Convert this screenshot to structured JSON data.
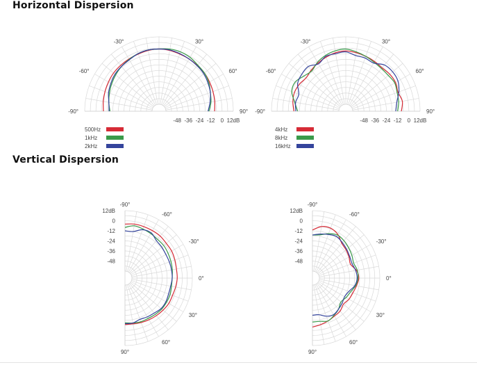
{
  "headings": {
    "horizontal": "Horizontal Dispersion",
    "vertical": "Vertical Dispersion"
  },
  "chart_data": [
    {
      "type": "polar",
      "section": "Horizontal Dispersion",
      "layout": "half-up",
      "angle_labels": [
        "-90°",
        "-60°",
        "-30°",
        "30°",
        "60°",
        "90°"
      ],
      "angle_ticks": [
        -90,
        -60,
        -30,
        30,
        60,
        90
      ],
      "radial_labels": [
        "-48",
        "-36",
        "-24",
        "-12",
        "0",
        "12dB"
      ],
      "radial_ticks": [
        -48,
        -36,
        -24,
        -12,
        0,
        12
      ],
      "r_range": [
        -60,
        12
      ],
      "grid": true,
      "legend": "bottom-left",
      "angles": [
        -90,
        -80,
        -70,
        -60,
        -50,
        -40,
        -30,
        -20,
        -10,
        0,
        10,
        20,
        30,
        40,
        50,
        60,
        70,
        80,
        90
      ],
      "series": [
        {
          "name": "500Hz",
          "color": "#d62b36",
          "values": [
            -8,
            -7,
            -6,
            -5,
            -4,
            -3.5,
            -3,
            -2.5,
            -1.5,
            -1,
            -1.5,
            -2.5,
            -3,
            -3.5,
            -4,
            -5,
            -6,
            -7,
            -8
          ]
        },
        {
          "name": "1kHz",
          "color": "#3a9a4a",
          "values": [
            -15,
            -13,
            -11,
            -9,
            -7,
            -5,
            -3.5,
            -2,
            -1,
            -1,
            0,
            0,
            -1,
            -3,
            -4,
            -6,
            -9,
            -11,
            -14
          ]
        },
        {
          "name": "2kHz",
          "color": "#34449c",
          "values": [
            -14,
            -13,
            -10,
            -8,
            -6,
            -5,
            -4,
            -2,
            -1,
            -1,
            -1,
            -2,
            -3,
            -4,
            -5,
            -7,
            -9,
            -12,
            -15
          ]
        }
      ]
    },
    {
      "type": "polar",
      "section": "Horizontal Dispersion",
      "layout": "half-up",
      "angle_labels": [
        "-90°",
        "-60°",
        "-30°",
        "30°",
        "60°",
        "90°"
      ],
      "angle_ticks": [
        -90,
        -60,
        -30,
        30,
        60,
        90
      ],
      "radial_labels": [
        "-48",
        "-36",
        "-24",
        "-12",
        "0",
        "12dB"
      ],
      "radial_ticks": [
        -48,
        -36,
        -24,
        -12,
        0,
        12
      ],
      "r_range": [
        -60,
        12
      ],
      "grid": true,
      "legend": "bottom-left",
      "angles": [
        -90,
        -80,
        -70,
        -60,
        -50,
        -40,
        -30,
        -20,
        -10,
        0,
        10,
        20,
        30,
        40,
        50,
        60,
        70,
        80,
        90
      ],
      "series": [
        {
          "name": "4kHz",
          "color": "#d62b36",
          "values": [
            -12,
            -10,
            -9,
            -10,
            -12,
            -10,
            -8,
            -6,
            -4,
            -3,
            -4,
            -5,
            -6,
            -7,
            -6,
            -6,
            -8,
            -6,
            -8
          ]
        },
        {
          "name": "8kHz",
          "color": "#3a9a4a",
          "values": [
            -16,
            -12,
            -6,
            -5,
            -9,
            -11,
            -7,
            -4,
            -2,
            -1,
            -3,
            -5,
            -7,
            -8,
            -8,
            -7,
            -9,
            -10,
            -12
          ]
        },
        {
          "name": "16kHz",
          "color": "#34449c",
          "values": [
            -14,
            -13,
            -14,
            -8,
            -6,
            -5,
            -9,
            -5,
            -5,
            -4,
            -7,
            -7,
            -8,
            -3,
            -2,
            -3,
            -7,
            -12,
            -14
          ]
        }
      ]
    },
    {
      "type": "polar",
      "section": "Vertical Dispersion",
      "layout": "half-right",
      "angle_labels": [
        "-90°",
        "-60°",
        "-30°",
        "0°",
        "30°",
        "60°",
        "90°"
      ],
      "angle_ticks": [
        -90,
        -60,
        -30,
        0,
        30,
        60,
        90
      ],
      "radial_labels": [
        "12dB",
        "0",
        "-12",
        "-24",
        "-36",
        "-48"
      ],
      "radial_ticks": [
        12,
        0,
        -12,
        -24,
        -36,
        -48
      ],
      "r_range": [
        -60,
        12
      ],
      "grid": true,
      "angles": [
        -90,
        -80,
        -70,
        -60,
        -50,
        -40,
        -30,
        -20,
        -10,
        0,
        10,
        20,
        30,
        40,
        50,
        60,
        70,
        80,
        90
      ],
      "series": [
        {
          "name": "",
          "color": "#d62b36",
          "values": [
            -4,
            -3,
            -3,
            -3,
            -3,
            -4,
            -4,
            -5,
            -6,
            -6,
            -7,
            -8,
            -8,
            -9,
            -10,
            -11,
            -12,
            -13,
            -13
          ]
        },
        {
          "name": "",
          "color": "#3a9a4a",
          "values": [
            -8,
            -5,
            -6,
            -7,
            -8,
            -8,
            -9,
            -10,
            -11,
            -12,
            -12,
            -11,
            -11,
            -11,
            -12,
            -13,
            -13,
            -14,
            -15
          ]
        },
        {
          "name": "",
          "color": "#34449c",
          "values": [
            -12,
            -12,
            -7,
            -6,
            -10,
            -11,
            -12,
            -12,
            -12,
            -12,
            -13,
            -13,
            -12,
            -12,
            -14,
            -15,
            -16,
            -14,
            -14
          ]
        }
      ]
    },
    {
      "type": "polar",
      "section": "Vertical Dispersion",
      "layout": "half-right",
      "angle_labels": [
        "-90°",
        "-60°",
        "-30°",
        "0°",
        "30°",
        "60°",
        "90°"
      ],
      "angle_ticks": [
        -90,
        -60,
        -30,
        0,
        30,
        60,
        90
      ],
      "radial_labels": [
        "12dB",
        "0",
        "-12",
        "-24",
        "-36",
        "-48"
      ],
      "radial_ticks": [
        12,
        0,
        -12,
        -24,
        -36,
        -48
      ],
      "r_range": [
        -60,
        12
      ],
      "grid": true,
      "angles": [
        -90,
        -80,
        -70,
        -60,
        -50,
        -40,
        -30,
        -20,
        -10,
        0,
        10,
        20,
        30,
        40,
        50,
        60,
        70,
        80,
        90
      ],
      "series": [
        {
          "name": "",
          "color": "#d62b36",
          "values": [
            -11,
            -6,
            -5,
            -8,
            -14,
            -16,
            -18,
            -20,
            -15,
            -13,
            -15,
            -17,
            -18,
            -20,
            -17,
            -16,
            -14,
            -12,
            -10
          ]
        },
        {
          "name": "",
          "color": "#3a9a4a",
          "values": [
            -17,
            -16,
            -12,
            -9,
            -10,
            -12,
            -14,
            -16,
            -14,
            -14,
            -16,
            -20,
            -22,
            -24,
            -20,
            -17,
            -14,
            -16,
            -16
          ]
        },
        {
          "name": "",
          "color": "#34449c",
          "values": [
            -17,
            -15,
            -13,
            -11,
            -13,
            -15,
            -17,
            -18,
            -16,
            -15,
            -17,
            -22,
            -24,
            -22,
            -20,
            -18,
            -20,
            -24,
            -24
          ]
        }
      ]
    }
  ]
}
